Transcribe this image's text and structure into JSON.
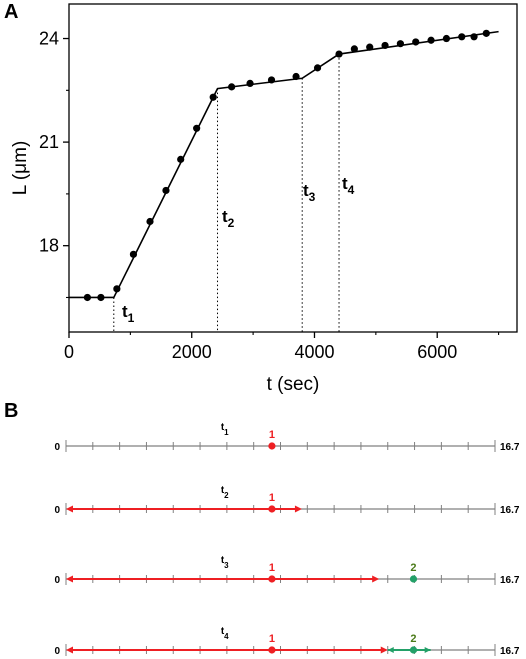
{
  "chart_data": [
    {
      "panel": "A",
      "type": "scatter",
      "xlabel": "t (sec)",
      "ylabel_main": "L (",
      "ylabel_unit": "μm",
      "ylabel_close": ")",
      "xlim": [
        0,
        7300
      ],
      "ylim": [
        15.5,
        25
      ],
      "xticks": [
        0,
        2000,
        4000,
        6000
      ],
      "xtick_labels": [
        "0",
        "2000",
        "4000",
        "6000"
      ],
      "yticks": [
        18,
        21,
        24
      ],
      "ytick_labels": [
        "18",
        "21",
        "24"
      ],
      "points": [
        {
          "x": 300,
          "y": 16.5
        },
        {
          "x": 520,
          "y": 16.5
        },
        {
          "x": 780,
          "y": 16.75
        },
        {
          "x": 1050,
          "y": 17.75
        },
        {
          "x": 1320,
          "y": 18.7
        },
        {
          "x": 1580,
          "y": 19.6
        },
        {
          "x": 1820,
          "y": 20.5
        },
        {
          "x": 2080,
          "y": 21.4
        },
        {
          "x": 2350,
          "y": 22.3
        },
        {
          "x": 2650,
          "y": 22.6
        },
        {
          "x": 2950,
          "y": 22.7
        },
        {
          "x": 3300,
          "y": 22.8
        },
        {
          "x": 3700,
          "y": 22.9
        },
        {
          "x": 4050,
          "y": 23.15
        },
        {
          "x": 4400,
          "y": 23.55
        },
        {
          "x": 4650,
          "y": 23.7
        },
        {
          "x": 4900,
          "y": 23.75
        },
        {
          "x": 5150,
          "y": 23.8
        },
        {
          "x": 5400,
          "y": 23.85
        },
        {
          "x": 5650,
          "y": 23.9
        },
        {
          "x": 5900,
          "y": 23.95
        },
        {
          "x": 6150,
          "y": 24.0
        },
        {
          "x": 6400,
          "y": 24.05
        },
        {
          "x": 6600,
          "y": 24.05
        },
        {
          "x": 6800,
          "y": 24.15
        }
      ],
      "fit_line": [
        {
          "x": 0,
          "y": 16.5
        },
        {
          "x": 730,
          "y": 16.5
        },
        {
          "x": 2420,
          "y": 22.55
        },
        {
          "x": 3800,
          "y": 22.85
        },
        {
          "x": 4400,
          "y": 23.55
        },
        {
          "x": 7000,
          "y": 24.2
        }
      ],
      "markers": [
        {
          "label": "t",
          "sub": "1",
          "x": 730
        },
        {
          "label": "t",
          "sub": "2",
          "x": 2420
        },
        {
          "label": "t",
          "sub": "3",
          "x": 3800
        },
        {
          "label": "t",
          "sub": "4",
          "x": 4400
        }
      ]
    },
    {
      "panel": "B",
      "type": "line",
      "range_start_label": "0",
      "range_end_label": "16.7",
      "tick_count": 17,
      "rows": [
        {
          "label": "t",
          "sub": "1",
          "red_reach": 0,
          "green": null,
          "point1": {
            "label": "1",
            "pos": 0.48
          }
        },
        {
          "label": "t",
          "sub": "2",
          "red_reach": 0.55,
          "green": null,
          "point1": {
            "label": "1",
            "pos": 0.48
          }
        },
        {
          "label": "t",
          "sub": "3",
          "red_reach": 0.73,
          "green": null,
          "point1": {
            "label": "1",
            "pos": 0.48
          },
          "point2": {
            "label": "2",
            "pos": 0.81
          }
        },
        {
          "label": "t",
          "sub": "4",
          "red_reach": 0.75,
          "green": [
            0.75,
            0.85
          ],
          "point1": {
            "label": "1",
            "pos": 0.48
          },
          "point2": {
            "label": "2",
            "pos": 0.81
          }
        }
      ]
    }
  ],
  "colors": {
    "axis": "#000000",
    "fit_line": "#000000",
    "points": "#000000",
    "red": "#ee1f23",
    "green": "#23a068",
    "green_label": "#4a7a18",
    "gray_line": "#808080"
  }
}
